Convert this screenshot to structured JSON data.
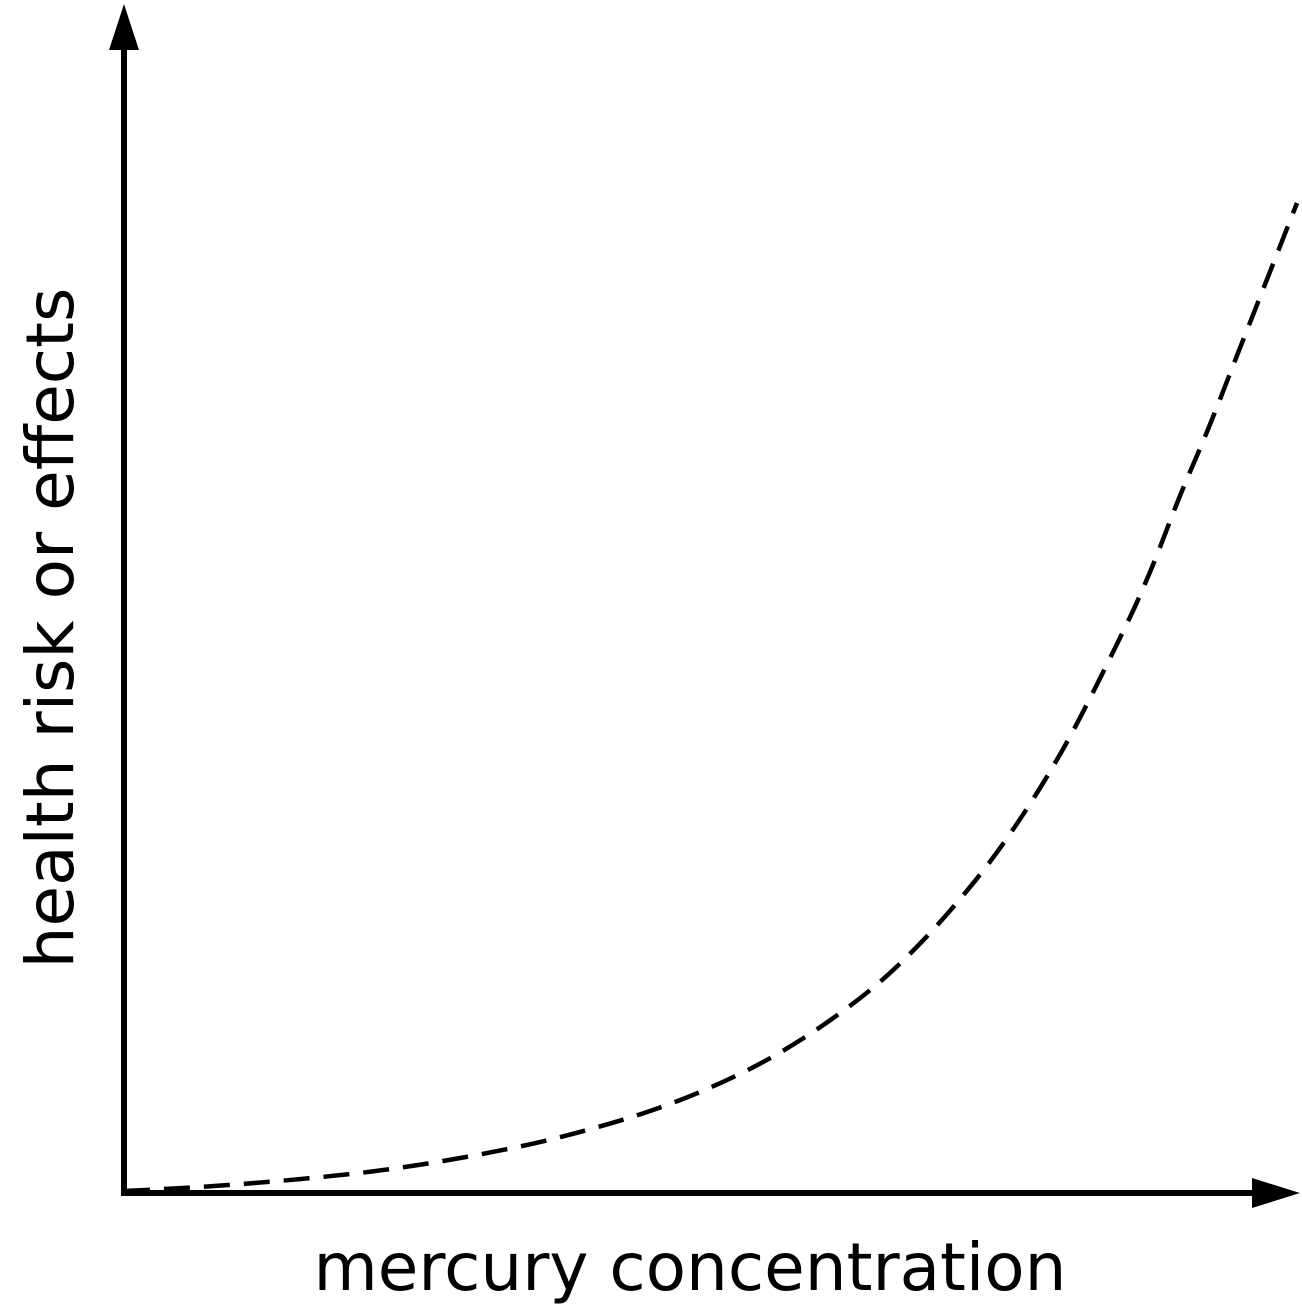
{
  "chart_data": {
    "type": "line",
    "title": "",
    "xlabel": "mercury concentration",
    "ylabel": "health risk or effects",
    "xlim": [
      0,
      1.0
    ],
    "ylim": [
      0,
      1.0
    ],
    "grid": false,
    "legend": "none",
    "axes_color": "#000000",
    "series": [
      {
        "line_style": "dashed",
        "color": "#000000",
        "x": [
          0.0,
          0.05,
          0.1,
          0.15,
          0.2,
          0.25,
          0.3,
          0.35,
          0.4,
          0.45,
          0.5,
          0.55,
          0.6,
          0.65,
          0.7,
          0.75,
          0.8,
          0.85,
          0.875,
          0.9,
          0.925,
          0.95,
          0.975,
          1.0
        ],
        "y": [
          0.002,
          0.005,
          0.009,
          0.014,
          0.02,
          0.028,
          0.038,
          0.05,
          0.065,
          0.083,
          0.106,
          0.135,
          0.172,
          0.218,
          0.278,
          0.352,
          0.445,
          0.56,
          0.625,
          0.7,
          0.77,
          0.845,
          0.92,
          0.995
        ]
      }
    ]
  }
}
